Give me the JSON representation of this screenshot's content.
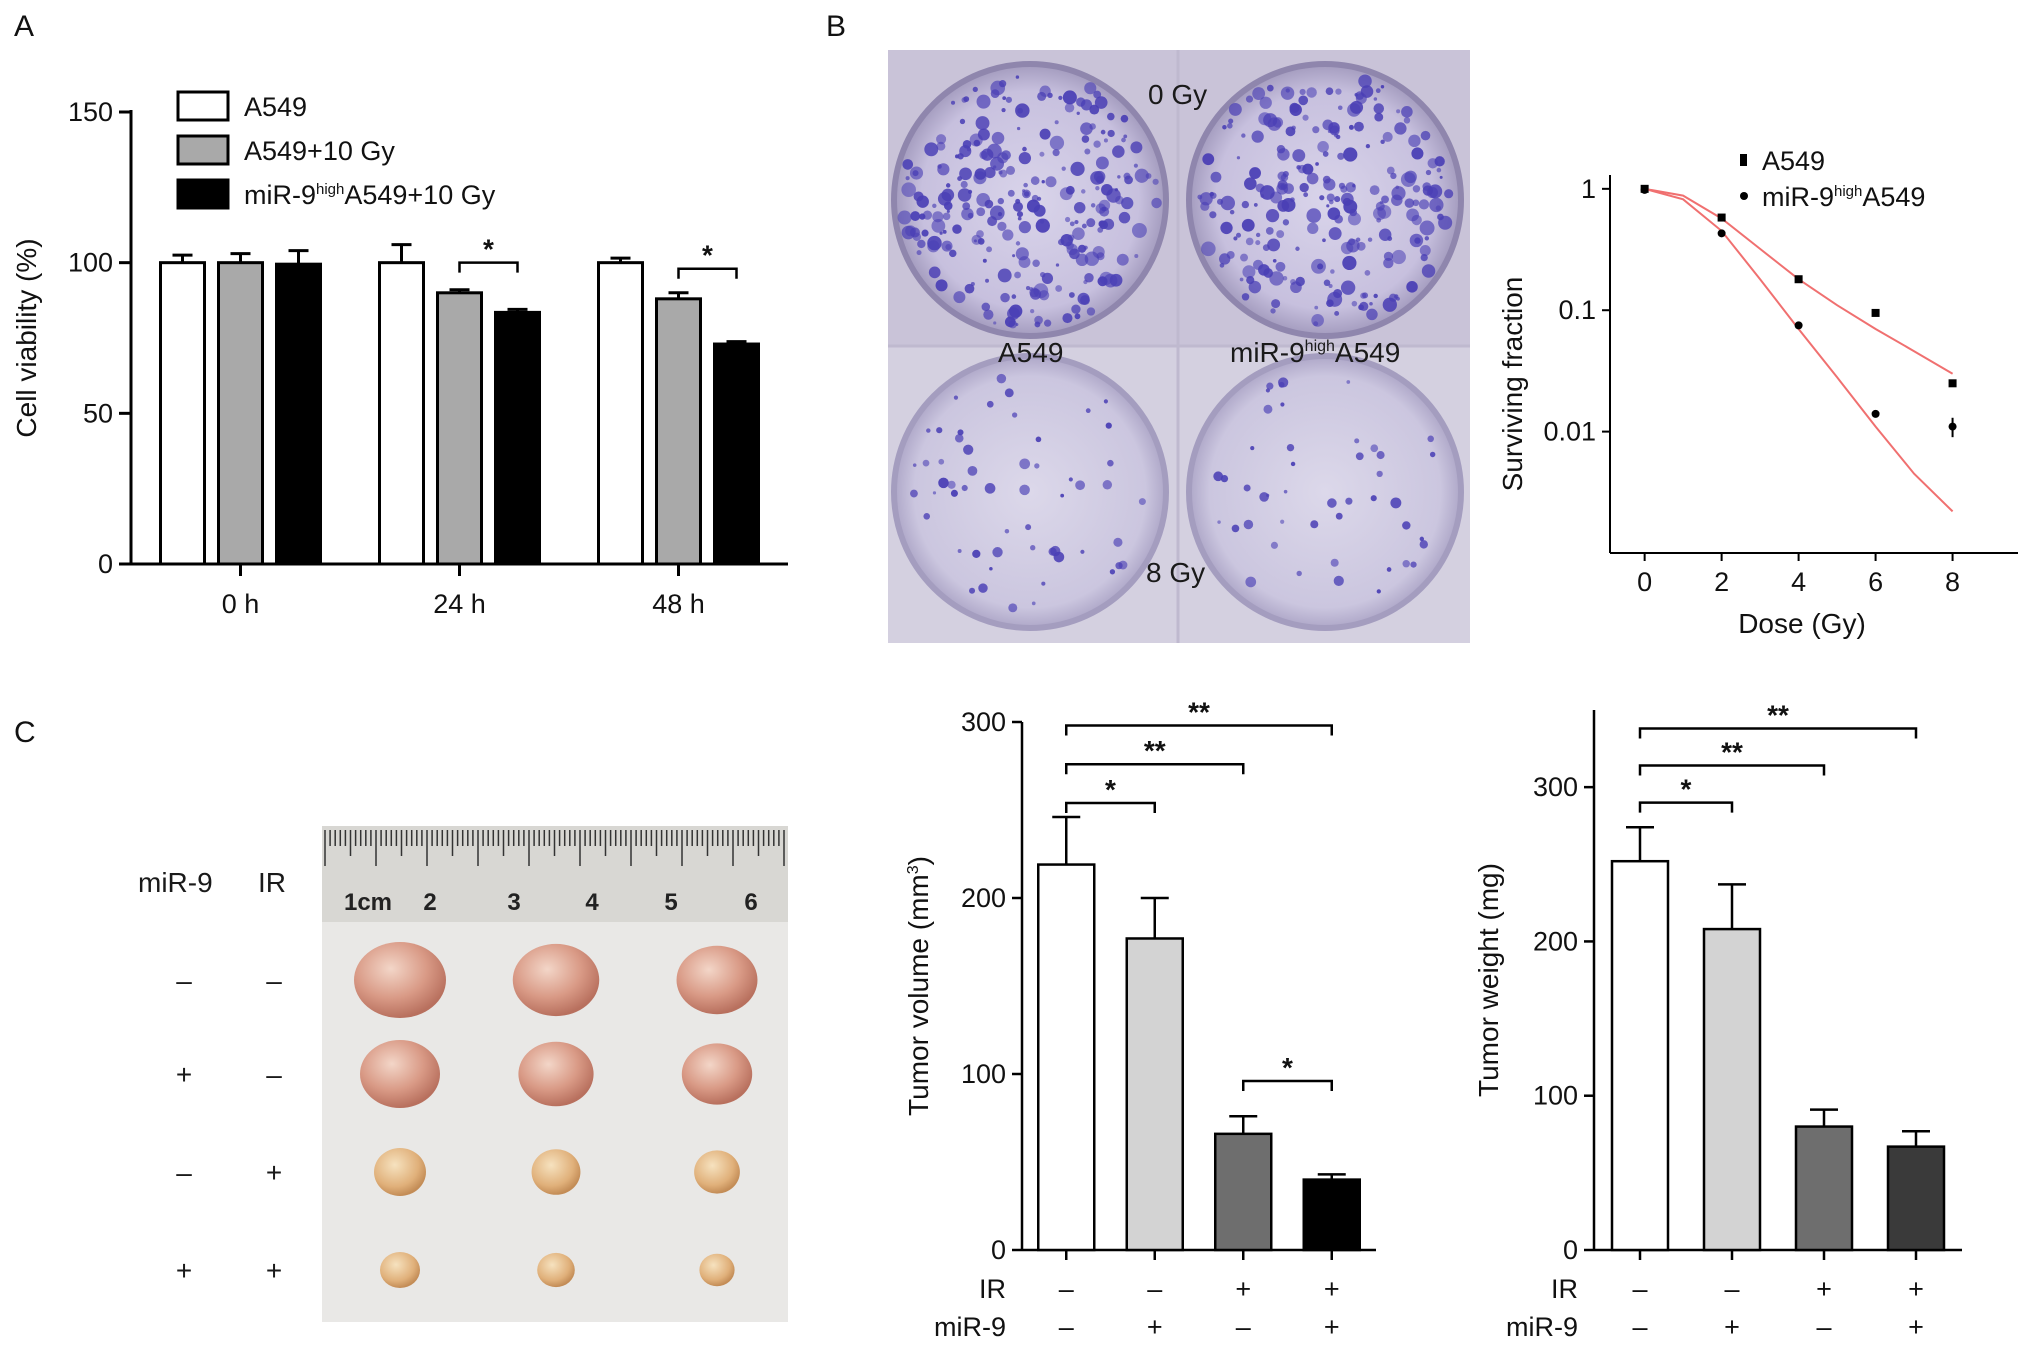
{
  "panels": {
    "a": "A",
    "b": "B",
    "c": "C"
  },
  "colors": {
    "bar_white": "#ffffff",
    "bar_gray": "#a9a9a9",
    "bar_black": "#000000",
    "bar_light": "#d3d3d3",
    "bar_dark": "#6e6e6e",
    "bar_darker": "#3a3a3a",
    "fit_line": "#f07070",
    "stain": "#4a3fb5"
  },
  "photos": {
    "plates": {
      "label_top": "0 Gy",
      "label_bottom": "8 Gy",
      "label_left": "A549",
      "label_right_prefix": "miR-9",
      "label_right_sup": "high",
      "label_right_suffix": "A549"
    },
    "tumors": {
      "col_mir9": "miR-9",
      "col_ir": "IR",
      "rows": [
        {
          "mir9": "–",
          "ir": "–"
        },
        {
          "mir9": "+",
          "ir": "–"
        },
        {
          "mir9": "–",
          "ir": "+"
        },
        {
          "mir9": "+",
          "ir": "+"
        }
      ],
      "ruler_labels": [
        "1cm",
        "2",
        "3",
        "4",
        "5",
        "6"
      ]
    }
  },
  "chart_data": [
    {
      "type": "bar",
      "panel": "A",
      "ylabel": "Cell viability (%)",
      "ylim": [
        0,
        150
      ],
      "yticks": [
        0,
        50,
        100,
        150
      ],
      "categories": [
        "0 h",
        "24 h",
        "48 h"
      ],
      "legend_position": "top-left",
      "series": [
        {
          "name": "A549",
          "legend": "A549",
          "values": [
            100,
            100,
            100
          ],
          "errors": [
            2.5,
            6,
            1.5
          ],
          "color": "#ffffff"
        },
        {
          "name": "A549+10 Gy",
          "legend": "A549+10 Gy",
          "values": [
            100,
            90,
            88
          ],
          "errors": [
            3,
            1,
            2
          ],
          "color": "#a9a9a9"
        },
        {
          "name": "miR-9highA549+10 Gy",
          "legend_prefix": "miR-9",
          "legend_sup": "high",
          "legend_suffix": "A549+10 Gy",
          "values": [
            99.5,
            83.5,
            73
          ],
          "errors": [
            4.5,
            1,
            0.8
          ],
          "color": "#000000"
        }
      ],
      "significance": [
        {
          "category": "24 h",
          "from_series": 1,
          "to_series": 2,
          "label": "*"
        },
        {
          "category": "48 h",
          "from_series": 1,
          "to_series": 2,
          "label": "*"
        }
      ]
    },
    {
      "type": "scatter",
      "panel": "B",
      "xlabel": "Dose (Gy)",
      "ylabel": "Surviving fraction",
      "yscale": "log",
      "xlim": [
        -0.9,
        9.7
      ],
      "xticks": [
        0,
        2,
        4,
        6,
        8
      ],
      "ylim": [
        0.001,
        1.3
      ],
      "yticks": [
        1,
        0.1,
        0.01
      ],
      "ytick_labels": [
        "1",
        "0.1",
        "0.01"
      ],
      "legend_position": "top-right",
      "series": [
        {
          "name": "A549",
          "marker": "square",
          "x": [
            0,
            2,
            4,
            6,
            8
          ],
          "y": [
            1.0,
            0.58,
            0.18,
            0.095,
            0.025
          ],
          "fit": [
            [
              0,
              1.0
            ],
            [
              1,
              0.88
            ],
            [
              2,
              0.57
            ],
            [
              3,
              0.32
            ],
            [
              4,
              0.18
            ],
            [
              5,
              0.11
            ],
            [
              6,
              0.07
            ],
            [
              7,
              0.046
            ],
            [
              8,
              0.03
            ]
          ]
        },
        {
          "name": "miR-9highA549",
          "legend_prefix": "miR-9",
          "legend_sup": "high",
          "legend_suffix": "A549",
          "marker": "dot",
          "x": [
            0,
            2,
            4,
            6,
            8
          ],
          "y": [
            0.98,
            0.43,
            0.075,
            0.014,
            0.011
          ],
          "y_error_last": 0.002,
          "fit": [
            [
              0,
              1.0
            ],
            [
              1,
              0.82
            ],
            [
              2,
              0.45
            ],
            [
              3,
              0.18
            ],
            [
              4,
              0.07
            ],
            [
              5,
              0.028
            ],
            [
              6,
              0.011
            ],
            [
              7,
              0.0045
            ],
            [
              8,
              0.0022
            ]
          ]
        }
      ]
    },
    {
      "type": "bar",
      "panel": "C-volume",
      "ylabel_prefix": "Tumor volume (mm",
      "ylabel_sup": "3",
      "ylabel_suffix": ")",
      "ylim": [
        0,
        300
      ],
      "yticks": [
        0,
        100,
        200,
        300
      ],
      "row_labels": [
        "IR",
        "miR-9"
      ],
      "groups": [
        {
          "ir": "–",
          "mir9": "–"
        },
        {
          "ir": "–",
          "mir9": "+"
        },
        {
          "ir": "+",
          "mir9": "–"
        },
        {
          "ir": "+",
          "mir9": "+"
        }
      ],
      "values": [
        219,
        177,
        66,
        40
      ],
      "errors": [
        27,
        23,
        10,
        3
      ],
      "colors": [
        "#ffffff",
        "#d3d3d3",
        "#6e6e6e",
        "#000000"
      ],
      "significance": [
        {
          "from": 0,
          "to": 1,
          "label": "*",
          "level": 254
        },
        {
          "from": 0,
          "to": 2,
          "label": "**",
          "level": 276
        },
        {
          "from": 0,
          "to": 3,
          "label": "**",
          "level": 298
        },
        {
          "from": 2,
          "to": 3,
          "label": "*",
          "level": 96
        }
      ]
    },
    {
      "type": "bar",
      "panel": "C-weight",
      "ylabel": "Tumor weight (mg)",
      "ylim": [
        0,
        350
      ],
      "yticks": [
        0,
        100,
        200,
        300
      ],
      "row_labels": [
        "IR",
        "miR-9"
      ],
      "groups": [
        {
          "ir": "–",
          "mir9": "–"
        },
        {
          "ir": "–",
          "mir9": "+"
        },
        {
          "ir": "+",
          "mir9": "–"
        },
        {
          "ir": "+",
          "mir9": "+"
        }
      ],
      "values": [
        252,
        208,
        80,
        67
      ],
      "errors": [
        22,
        29,
        11,
        10
      ],
      "colors": [
        "#ffffff",
        "#d3d3d3",
        "#6e6e6e",
        "#3a3a3a"
      ],
      "significance": [
        {
          "from": 0,
          "to": 1,
          "label": "*",
          "level": 290
        },
        {
          "from": 0,
          "to": 2,
          "label": "**",
          "level": 314
        },
        {
          "from": 0,
          "to": 3,
          "label": "**",
          "level": 338
        }
      ]
    }
  ]
}
